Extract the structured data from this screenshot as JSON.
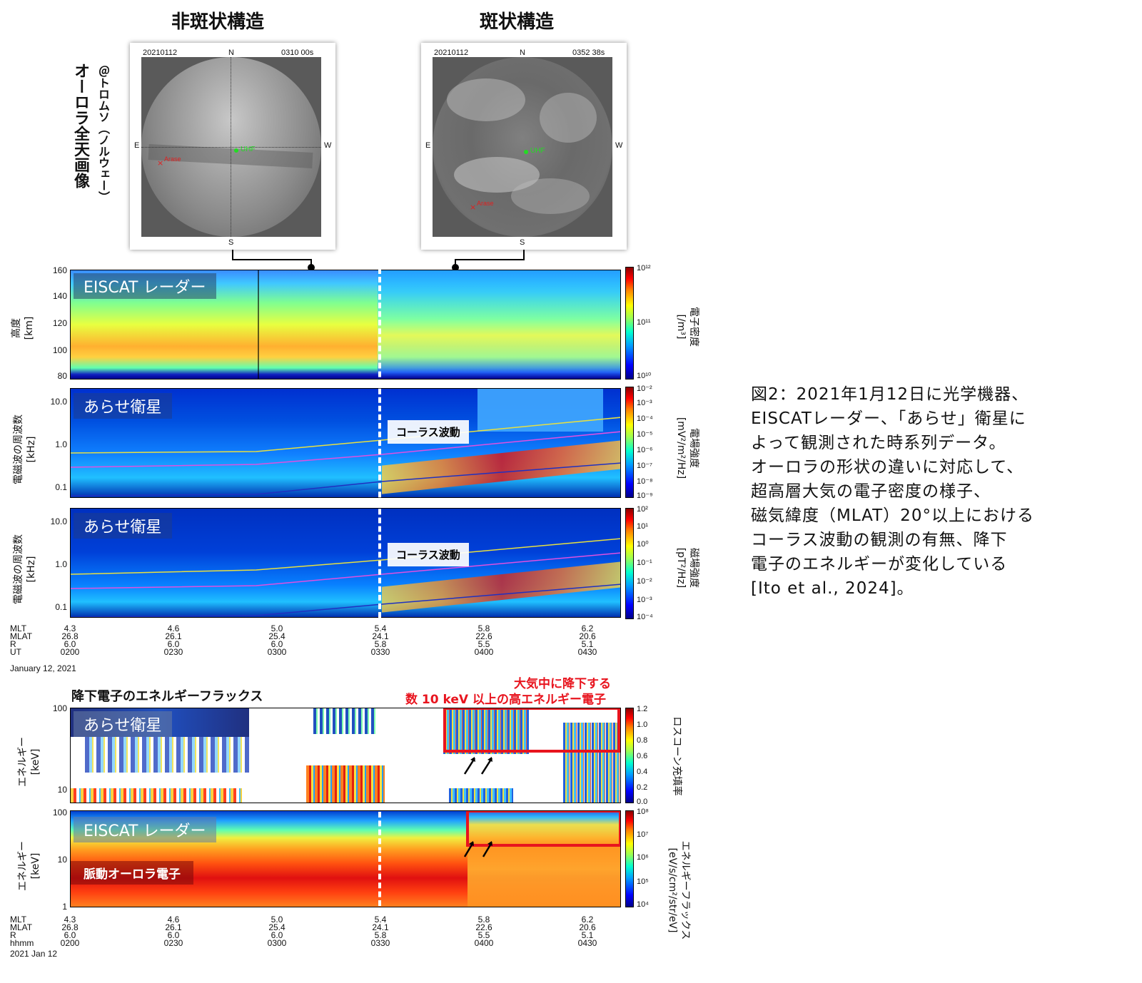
{
  "headers": {
    "left": "非斑状構造",
    "right": "斑状構造"
  },
  "side_title": {
    "main": "オーロラ全天画像",
    "sub": "＠トロムソ（ノルウェー）"
  },
  "sky_left": {
    "date": "20210112",
    "time": "0310 00s",
    "N": "N",
    "S": "S",
    "E": "E",
    "W": "W",
    "uhf": "UHF",
    "arase": "Arase"
  },
  "sky_right": {
    "date": "20210112",
    "time": "0352 38s",
    "N": "N",
    "S": "S",
    "E": "E",
    "W": "W",
    "uhf": "UHF",
    "arase": "Arase"
  },
  "panel1": {
    "banner": "EISCAT レーダー",
    "ylabel": "高度\n[km]",
    "yticks": [
      "160",
      "140",
      "120",
      "100",
      "80"
    ],
    "cb_label": "電子密度\n[/m³]",
    "cb_ticks": [
      "10¹²",
      "10¹¹",
      "10¹⁰"
    ]
  },
  "panel2": {
    "banner": "あらせ衛星",
    "chorus": "コーラス波動",
    "ylabel": "電磁波の周波数\n[kHz]",
    "yticks": [
      "10.0",
      "1.0",
      "0.1"
    ],
    "cb_label": "電場強度\n[mV²/m²/Hz]",
    "cb_ticks": [
      "10⁻²",
      "10⁻³",
      "10⁻⁴",
      "10⁻⁵",
      "10⁻⁶",
      "10⁻⁷",
      "10⁻⁸",
      "10⁻⁹"
    ]
  },
  "panel3": {
    "banner": "あらせ衛星",
    "chorus": "コーラス波動",
    "ylabel": "電磁波の周波数\n[kHz]",
    "yticks": [
      "10.0",
      "1.0",
      "0.1"
    ],
    "cb_label": "磁場強度\n[pT²/Hz]",
    "cb_ticks": [
      "10²",
      "10¹",
      "10⁰",
      "10⁻¹",
      "10⁻²",
      "10⁻³",
      "10⁻⁴"
    ]
  },
  "xaxis1": {
    "labels": [
      "MLT",
      "MLAT",
      "R",
      "UT"
    ],
    "cols": [
      [
        "4.3",
        "26.8",
        "6.0",
        "0200"
      ],
      [
        "4.6",
        "26.1",
        "6.0",
        "0230"
      ],
      [
        "5.0",
        "25.4",
        "6.0",
        "0300"
      ],
      [
        "5.4",
        "24.1",
        "5.8",
        "0330"
      ],
      [
        "5.8",
        "22.6",
        "5.5",
        "0400"
      ],
      [
        "6.2",
        "20.6",
        "5.1",
        "0430"
      ]
    ],
    "date": "January 12, 2021"
  },
  "section2": {
    "title": "降下電子のエネルギーフラックス",
    "red_note_1": "大気中に降下する",
    "red_note_2": "数 10 keV 以上の高エネルギー電子"
  },
  "panel4": {
    "banner": "あらせ衛星",
    "ylabel": "エネルギー\n[keV]",
    "yticks": [
      "100",
      "10"
    ],
    "cb_label": "ロスコーン充填率",
    "cb_ticks": [
      "1.2",
      "1.0",
      "0.8",
      "0.6",
      "0.4",
      "0.2",
      "0.0"
    ]
  },
  "panel5": {
    "banner": "EISCAT レーダー",
    "sub_banner": "脈動オーロラ電子",
    "ylabel": "エネルギー\n[keV]",
    "yticks": [
      "100",
      "10",
      "1"
    ],
    "cb_label": "エネルギーフラックス\n[eV/s/cm²/str/eV]",
    "cb_ticks": [
      "10⁸",
      "10⁷",
      "10⁶",
      "10⁵",
      "10⁴"
    ]
  },
  "xaxis2": {
    "labels": [
      "MLT",
      "MLAT",
      "R",
      "hhmm"
    ],
    "cols": [
      [
        "4.3",
        "26.8",
        "6.0",
        "0200"
      ],
      [
        "4.6",
        "26.1",
        "6.0",
        "0230"
      ],
      [
        "5.0",
        "25.4",
        "6.0",
        "0300"
      ],
      [
        "5.4",
        "24.1",
        "5.8",
        "0330"
      ],
      [
        "5.8",
        "22.6",
        "5.5",
        "0400"
      ],
      [
        "6.2",
        "20.6",
        "5.1",
        "0430"
      ]
    ],
    "date": "2021 Jan 12"
  },
  "caption": [
    "図2：2021年1月12日に光学機器、",
    "EISCATレーダー、「あらせ」衛星に",
    "よって観測された時系列データ。",
    "オーロラの形状の違いに対応して、",
    "超高層大気の電子密度の様子、",
    "磁気緯度（MLAT）20°以上における",
    "コーラス波動の観測の有無、降下",
    "電子のエネルギーが変化している",
    "[Ito et al., 2024]。"
  ],
  "chart_data": [
    {
      "type": "heatmap",
      "title": "EISCAT レーダー",
      "ylabel": "高度 [km]",
      "ylim": [
        80,
        160
      ],
      "colorbar": "電子密度 [/m³]",
      "clim": [
        "10¹⁰",
        "10¹²"
      ]
    },
    {
      "type": "heatmap",
      "title": "あらせ衛星",
      "ylabel": "電磁波の周波数 [kHz]",
      "ylim": [
        0.1,
        10.0
      ],
      "colorbar": "電場強度 [mV²/m²/Hz]",
      "clim": [
        "10⁻⁹",
        "10⁻²"
      ]
    },
    {
      "type": "heatmap",
      "title": "あらせ衛星",
      "ylabel": "電磁波の周波数 [kHz]",
      "ylim": [
        0.1,
        10.0
      ],
      "colorbar": "磁場強度 [pT²/Hz]",
      "clim": [
        "10⁻⁴",
        "10²"
      ]
    },
    {
      "type": "heatmap",
      "title": "あらせ衛星",
      "ylabel": "エネルギー [keV]",
      "ylim": [
        10,
        100
      ],
      "colorbar": "ロスコーン充填率",
      "clim": [
        0.0,
        1.2
      ]
    },
    {
      "type": "heatmap",
      "title": "EISCAT レーダー",
      "ylabel": "エネルギー [keV]",
      "ylim": [
        1,
        100
      ],
      "colorbar": "エネルギーフラックス [eV/s/cm²/str/eV]",
      "clim": [
        "10⁴",
        "10⁸"
      ]
    }
  ],
  "colors": {
    "red_note": "#e8141e",
    "chorus_line_yellow": "#e8e040",
    "chorus_line_magenta": "#e050e0",
    "line_blue": "#2030c0"
  }
}
